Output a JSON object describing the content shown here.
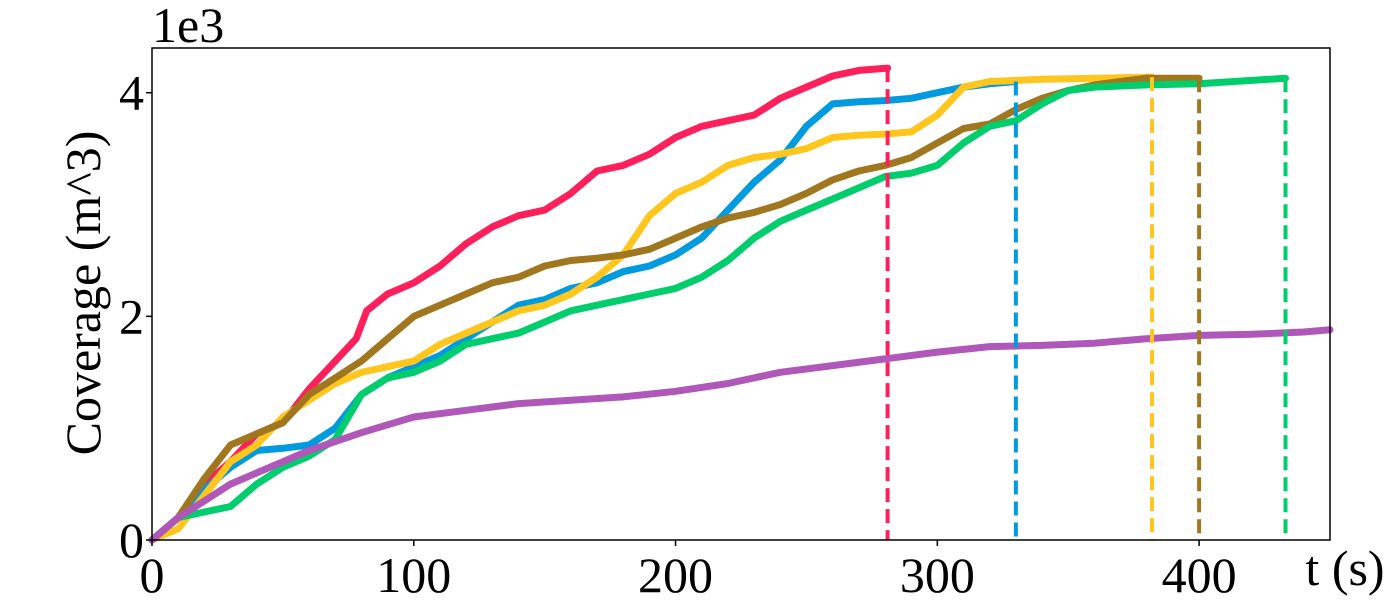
{
  "chart_data": {
    "type": "line",
    "title": "",
    "xlabel": "t (s)",
    "ylabel": "Coverage (m^3)",
    "y_scale_label": "1e3",
    "xlim": [
      0,
      450
    ],
    "ylim": [
      0,
      4.4
    ],
    "x_ticks": [
      0,
      100,
      200,
      300,
      400
    ],
    "y_ticks": [
      0,
      2,
      4
    ],
    "grid": false,
    "legend": "none",
    "series": [
      {
        "color": "#FF1F5B",
        "end_time": 281,
        "points": [
          [
            0,
            0
          ],
          [
            10,
            0.2
          ],
          [
            20,
            0.5
          ],
          [
            30,
            0.7
          ],
          [
            40,
            0.95
          ],
          [
            50,
            1.05
          ],
          [
            60,
            1.35
          ],
          [
            70,
            1.6
          ],
          [
            78,
            1.8
          ],
          [
            82,
            2.05
          ],
          [
            90,
            2.2
          ],
          [
            100,
            2.3
          ],
          [
            110,
            2.45
          ],
          [
            120,
            2.65
          ],
          [
            130,
            2.8
          ],
          [
            140,
            2.9
          ],
          [
            150,
            2.95
          ],
          [
            160,
            3.1
          ],
          [
            170,
            3.3
          ],
          [
            180,
            3.35
          ],
          [
            190,
            3.45
          ],
          [
            200,
            3.6
          ],
          [
            210,
            3.7
          ],
          [
            220,
            3.75
          ],
          [
            230,
            3.8
          ],
          [
            240,
            3.95
          ],
          [
            250,
            4.05
          ],
          [
            260,
            4.15
          ],
          [
            270,
            4.2
          ],
          [
            281,
            4.22
          ]
        ]
      },
      {
        "color": "#009ADE",
        "end_time": 330,
        "points": [
          [
            0,
            0
          ],
          [
            10,
            0.2
          ],
          [
            20,
            0.45
          ],
          [
            30,
            0.65
          ],
          [
            40,
            0.8
          ],
          [
            50,
            0.82
          ],
          [
            60,
            0.85
          ],
          [
            70,
            1.0
          ],
          [
            80,
            1.3
          ],
          [
            90,
            1.45
          ],
          [
            100,
            1.55
          ],
          [
            110,
            1.65
          ],
          [
            120,
            1.8
          ],
          [
            130,
            1.95
          ],
          [
            140,
            2.1
          ],
          [
            150,
            2.15
          ],
          [
            160,
            2.25
          ],
          [
            170,
            2.3
          ],
          [
            180,
            2.4
          ],
          [
            190,
            2.45
          ],
          [
            200,
            2.55
          ],
          [
            210,
            2.7
          ],
          [
            220,
            2.95
          ],
          [
            230,
            3.2
          ],
          [
            240,
            3.4
          ],
          [
            250,
            3.7
          ],
          [
            260,
            3.9
          ],
          [
            270,
            3.92
          ],
          [
            280,
            3.93
          ],
          [
            290,
            3.95
          ],
          [
            300,
            4.0
          ],
          [
            310,
            4.05
          ],
          [
            320,
            4.08
          ],
          [
            330,
            4.1
          ]
        ]
      },
      {
        "color": "#FFC61E",
        "end_time": 382,
        "points": [
          [
            0,
            0
          ],
          [
            10,
            0.1
          ],
          [
            20,
            0.4
          ],
          [
            30,
            0.7
          ],
          [
            40,
            0.85
          ],
          [
            50,
            1.1
          ],
          [
            60,
            1.25
          ],
          [
            70,
            1.4
          ],
          [
            80,
            1.5
          ],
          [
            90,
            1.55
          ],
          [
            100,
            1.6
          ],
          [
            110,
            1.75
          ],
          [
            120,
            1.85
          ],
          [
            130,
            1.95
          ],
          [
            140,
            2.05
          ],
          [
            150,
            2.1
          ],
          [
            160,
            2.2
          ],
          [
            170,
            2.35
          ],
          [
            180,
            2.55
          ],
          [
            190,
            2.9
          ],
          [
            200,
            3.1
          ],
          [
            210,
            3.2
          ],
          [
            220,
            3.35
          ],
          [
            230,
            3.42
          ],
          [
            240,
            3.45
          ],
          [
            250,
            3.5
          ],
          [
            260,
            3.6
          ],
          [
            270,
            3.62
          ],
          [
            280,
            3.63
          ],
          [
            290,
            3.65
          ],
          [
            300,
            3.8
          ],
          [
            310,
            4.05
          ],
          [
            320,
            4.1
          ],
          [
            340,
            4.12
          ],
          [
            360,
            4.13
          ],
          [
            382,
            4.14
          ]
        ]
      },
      {
        "color": "#A0771E",
        "end_time": 400,
        "points": [
          [
            0,
            0
          ],
          [
            10,
            0.2
          ],
          [
            20,
            0.55
          ],
          [
            30,
            0.85
          ],
          [
            40,
            0.95
          ],
          [
            50,
            1.05
          ],
          [
            60,
            1.3
          ],
          [
            70,
            1.45
          ],
          [
            80,
            1.6
          ],
          [
            90,
            1.8
          ],
          [
            100,
            2.0
          ],
          [
            110,
            2.1
          ],
          [
            120,
            2.2
          ],
          [
            130,
            2.3
          ],
          [
            140,
            2.35
          ],
          [
            150,
            2.45
          ],
          [
            160,
            2.5
          ],
          [
            170,
            2.52
          ],
          [
            180,
            2.55
          ],
          [
            190,
            2.6
          ],
          [
            200,
            2.7
          ],
          [
            210,
            2.8
          ],
          [
            220,
            2.88
          ],
          [
            230,
            2.93
          ],
          [
            240,
            3.0
          ],
          [
            250,
            3.1
          ],
          [
            260,
            3.22
          ],
          [
            270,
            3.3
          ],
          [
            280,
            3.35
          ],
          [
            290,
            3.42
          ],
          [
            300,
            3.55
          ],
          [
            310,
            3.68
          ],
          [
            320,
            3.72
          ],
          [
            330,
            3.85
          ],
          [
            340,
            3.95
          ],
          [
            350,
            4.02
          ],
          [
            360,
            4.07
          ],
          [
            370,
            4.1
          ],
          [
            380,
            4.13
          ],
          [
            400,
            4.13
          ]
        ]
      },
      {
        "color": "#00CD6C",
        "end_time": 433,
        "points": [
          [
            0,
            0
          ],
          [
            10,
            0.2
          ],
          [
            20,
            0.25
          ],
          [
            30,
            0.3
          ],
          [
            40,
            0.5
          ],
          [
            50,
            0.65
          ],
          [
            60,
            0.75
          ],
          [
            70,
            0.9
          ],
          [
            80,
            1.3
          ],
          [
            90,
            1.45
          ],
          [
            100,
            1.5
          ],
          [
            110,
            1.6
          ],
          [
            120,
            1.75
          ],
          [
            130,
            1.8
          ],
          [
            140,
            1.85
          ],
          [
            150,
            1.95
          ],
          [
            160,
            2.05
          ],
          [
            170,
            2.1
          ],
          [
            180,
            2.15
          ],
          [
            190,
            2.2
          ],
          [
            200,
            2.25
          ],
          [
            210,
            2.35
          ],
          [
            220,
            2.5
          ],
          [
            230,
            2.7
          ],
          [
            240,
            2.85
          ],
          [
            250,
            2.95
          ],
          [
            260,
            3.05
          ],
          [
            270,
            3.15
          ],
          [
            280,
            3.25
          ],
          [
            290,
            3.28
          ],
          [
            300,
            3.35
          ],
          [
            310,
            3.55
          ],
          [
            320,
            3.7
          ],
          [
            330,
            3.75
          ],
          [
            340,
            3.9
          ],
          [
            350,
            4.02
          ],
          [
            360,
            4.05
          ],
          [
            380,
            4.07
          ],
          [
            400,
            4.08
          ],
          [
            420,
            4.11
          ],
          [
            433,
            4.13
          ]
        ]
      },
      {
        "color": "#AF58BA",
        "end_time": null,
        "points": [
          [
            0,
            0
          ],
          [
            10,
            0.2
          ],
          [
            20,
            0.35
          ],
          [
            30,
            0.5
          ],
          [
            40,
            0.6
          ],
          [
            50,
            0.7
          ],
          [
            60,
            0.8
          ],
          [
            70,
            0.88
          ],
          [
            80,
            0.96
          ],
          [
            90,
            1.03
          ],
          [
            100,
            1.1
          ],
          [
            120,
            1.16
          ],
          [
            140,
            1.22
          ],
          [
            160,
            1.25
          ],
          [
            180,
            1.28
          ],
          [
            200,
            1.33
          ],
          [
            220,
            1.4
          ],
          [
            240,
            1.5
          ],
          [
            260,
            1.56
          ],
          [
            280,
            1.62
          ],
          [
            300,
            1.68
          ],
          [
            320,
            1.73
          ],
          [
            340,
            1.74
          ],
          [
            360,
            1.76
          ],
          [
            380,
            1.8
          ],
          [
            400,
            1.83
          ],
          [
            420,
            1.84
          ],
          [
            440,
            1.86
          ],
          [
            450,
            1.88
          ]
        ]
      }
    ]
  }
}
